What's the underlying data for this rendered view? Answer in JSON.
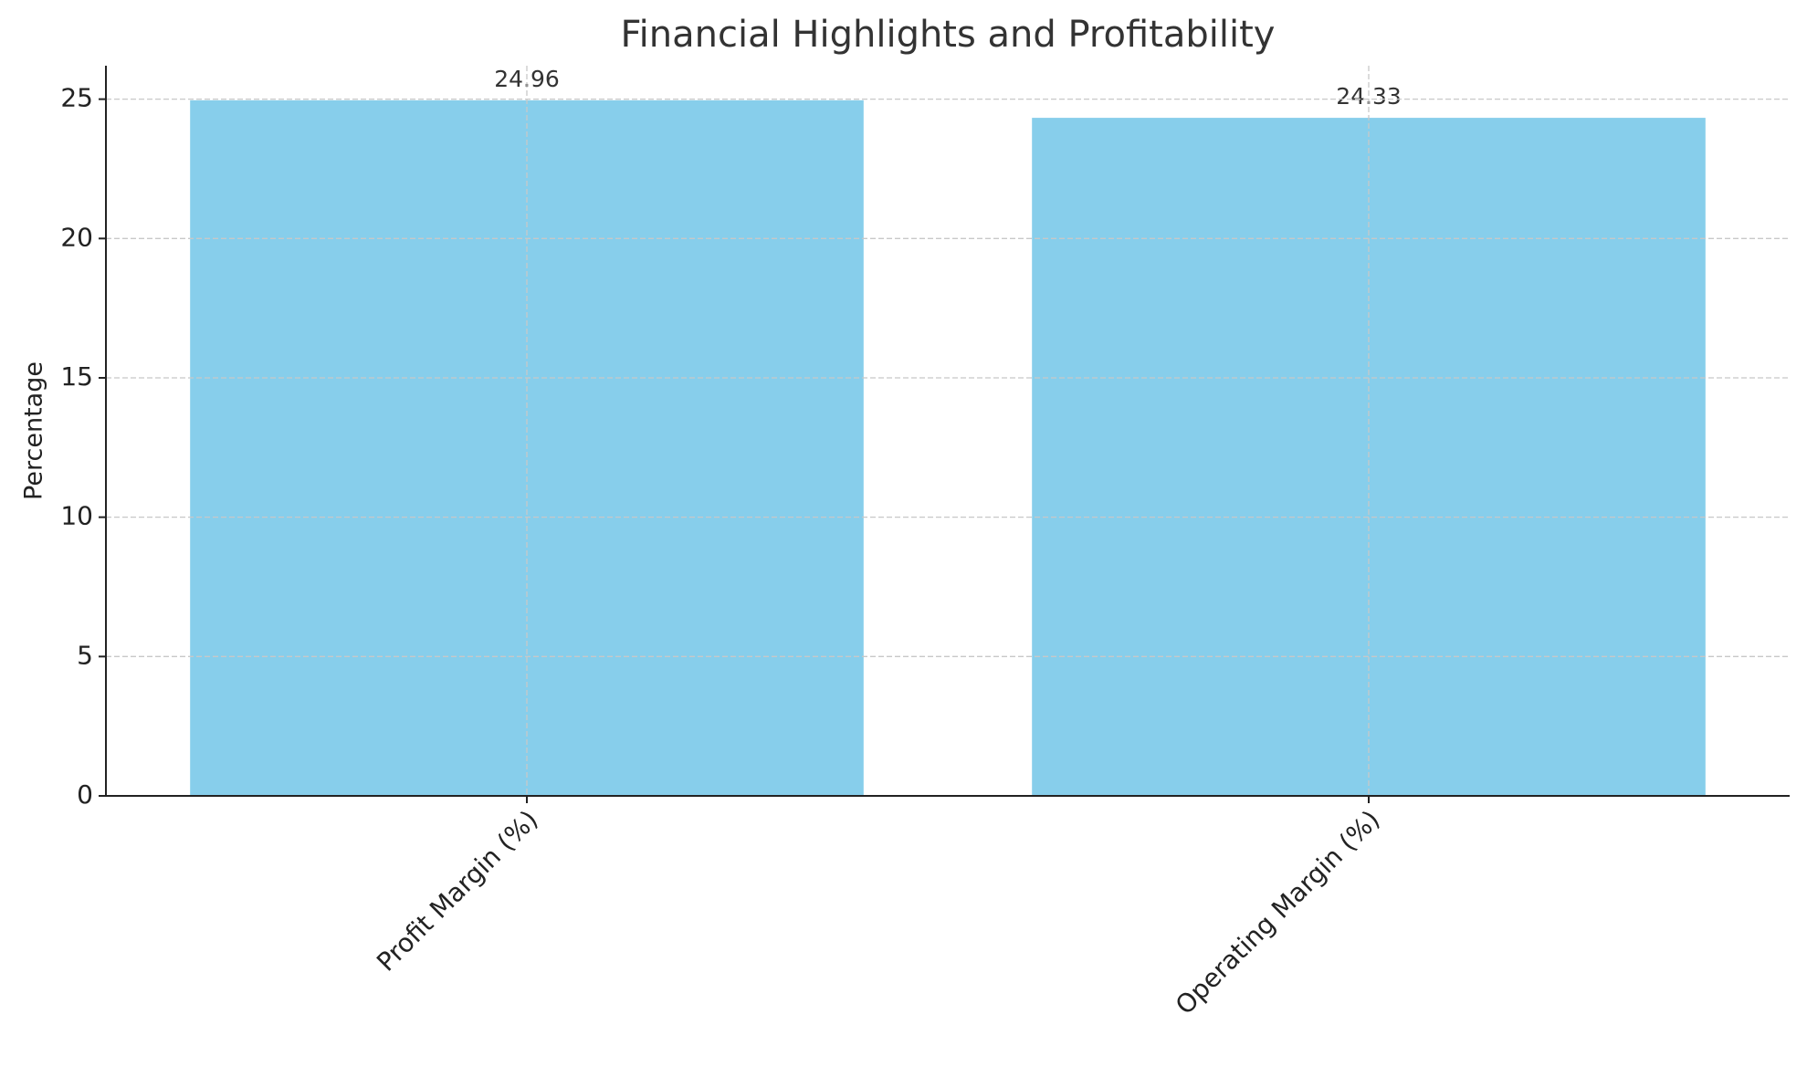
{
  "chart_data": {
    "type": "bar",
    "title": "Financial Highlights and Profitability",
    "y_label": "Percentage",
    "categories": [
      "Profit Margin (%)",
      "Operating Margin (%)"
    ],
    "values": [
      24.96,
      24.33
    ],
    "color": "#87ceeb",
    "ylim": [
      0,
      26.2
    ],
    "yticks": [
      0,
      5,
      10,
      15,
      20,
      25
    ],
    "grid": true
  }
}
